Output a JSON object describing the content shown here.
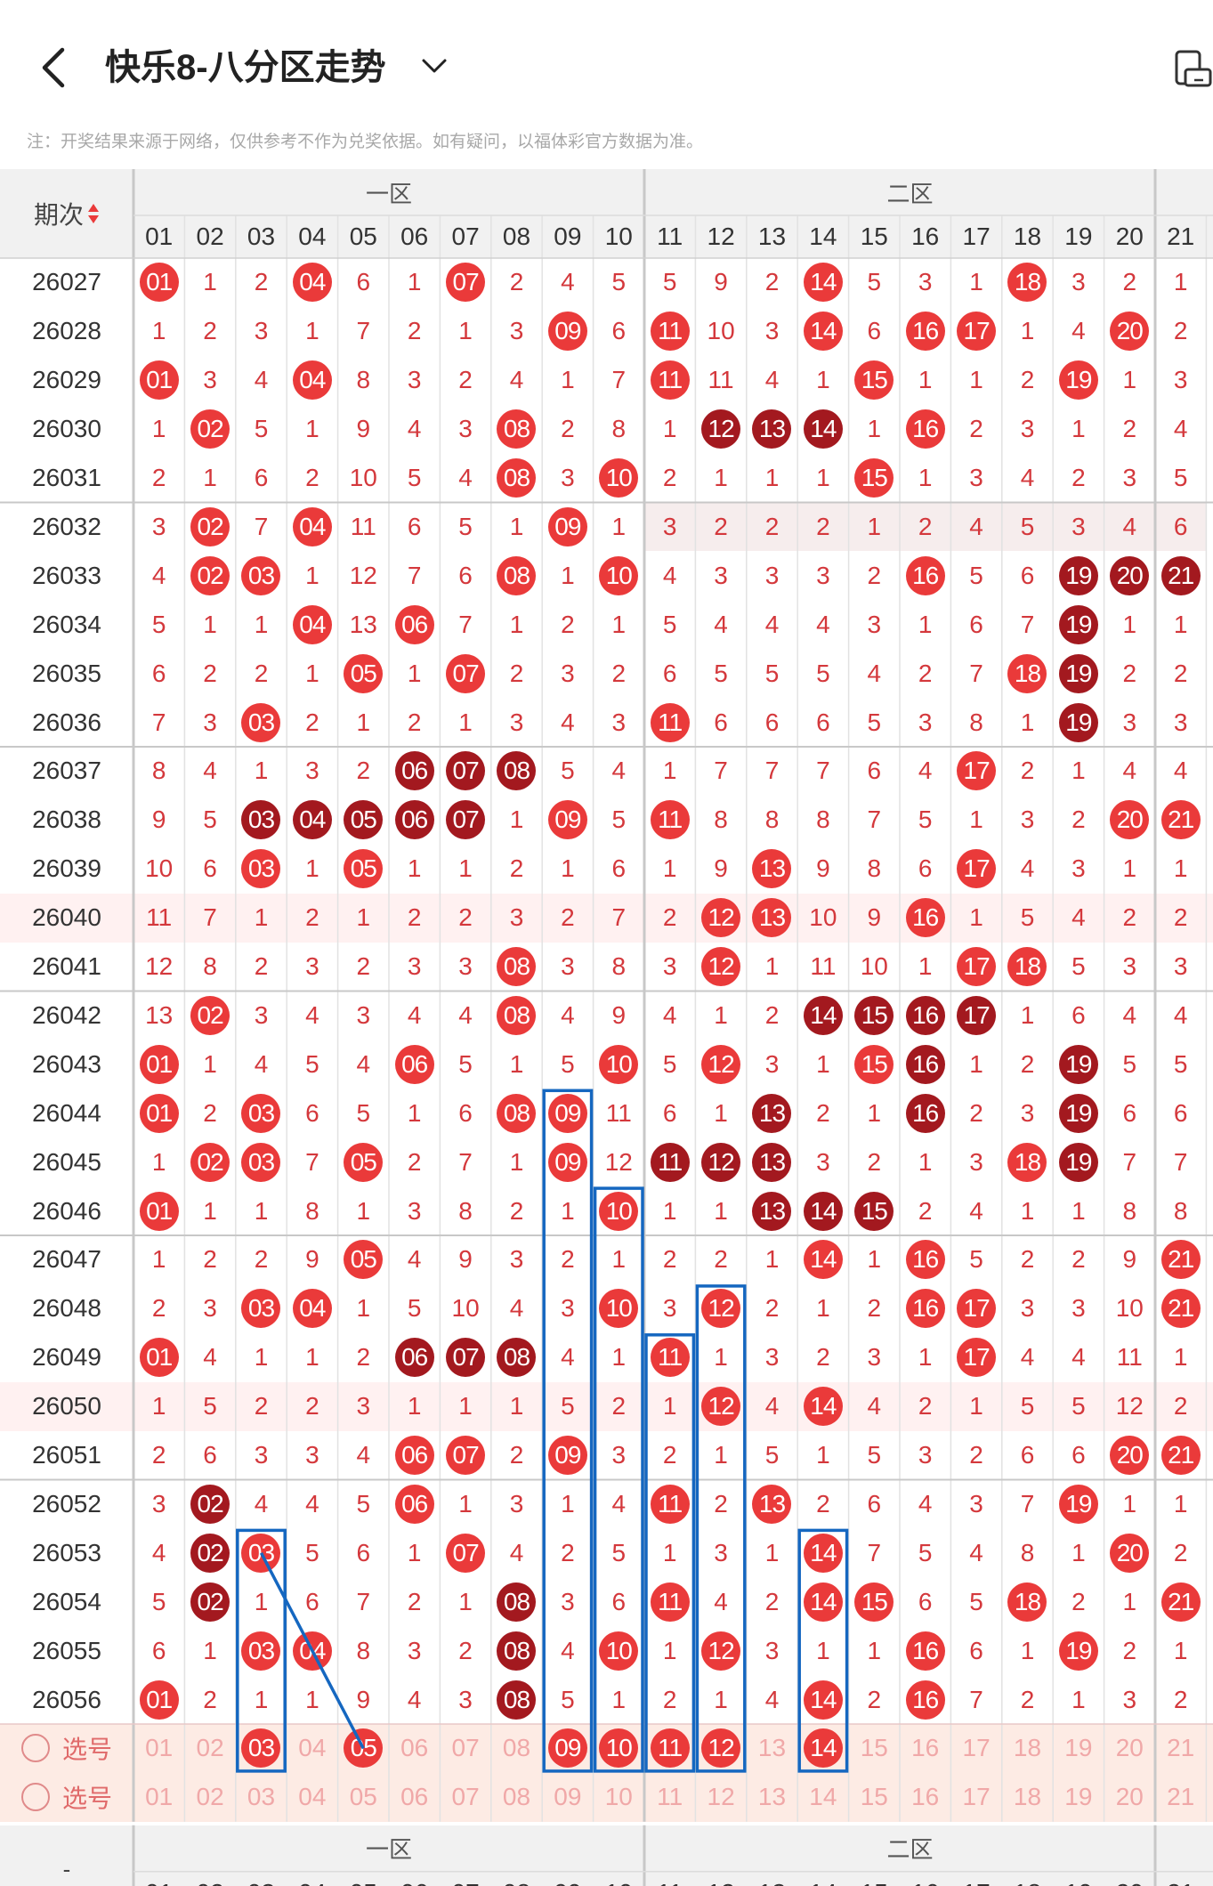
{
  "header": {
    "title": "快乐8-八分区走势",
    "back_icon": "chevron-left-icon",
    "dropdown_icon": "chevron-down-icon",
    "rotate_icon": "screen-rotate-icon"
  },
  "note": "注：开奖结果来源于网络，仅供参考不作为兑奖依据。如有疑问，以福体彩官方数据为准。",
  "table": {
    "period_label": "期次",
    "sort_icon": "sort-updown-icon",
    "zones": [
      "一区",
      "二区"
    ],
    "columns": [
      "01",
      "02",
      "03",
      "04",
      "05",
      "06",
      "07",
      "08",
      "09",
      "10",
      "11",
      "12",
      "13",
      "14",
      "15",
      "16",
      "17",
      "18",
      "19",
      "20",
      "21"
    ],
    "rows": [
      {
        "period": "26027",
        "cells": [
          "01",
          "1",
          "2",
          "04",
          "6",
          "1",
          "07",
          "2",
          "4",
          "5",
          "5",
          "9",
          "2",
          "14",
          "5",
          "3",
          "1",
          "18",
          "3",
          "2",
          "1"
        ]
      },
      {
        "period": "26028",
        "cells": [
          "1",
          "2",
          "3",
          "1",
          "7",
          "2",
          "1",
          "3",
          "09",
          "6",
          "11",
          "10",
          "3",
          "14",
          "6",
          "16",
          "17",
          "1",
          "4",
          "20",
          "2"
        ]
      },
      {
        "period": "26029",
        "cells": [
          "01",
          "3",
          "4",
          "04",
          "8",
          "3",
          "2",
          "4",
          "1",
          "7",
          "11",
          "11",
          "4",
          "1",
          "15",
          "1",
          "1",
          "2",
          "19",
          "1",
          "3"
        ]
      },
      {
        "period": "26030",
        "cells": [
          "1",
          "02",
          "5",
          "1",
          "9",
          "4",
          "3",
          "08",
          "2",
          "8",
          "1",
          "12",
          "13",
          "14",
          "1",
          "16",
          "2",
          "3",
          "1",
          "2",
          "4"
        ]
      },
      {
        "period": "26031",
        "cells": [
          "2",
          "1",
          "6",
          "2",
          "10",
          "5",
          "4",
          "08",
          "3",
          "10",
          "2",
          "1",
          "1",
          "1",
          "15",
          "1",
          "3",
          "4",
          "2",
          "3",
          "5"
        ]
      },
      {
        "period": "26032",
        "cells": [
          "3",
          "02",
          "7",
          "04",
          "11",
          "6",
          "5",
          "1",
          "09",
          "1",
          "3",
          "2",
          "2",
          "2",
          "1",
          "2",
          "4",
          "5",
          "3",
          "4",
          "6"
        ]
      },
      {
        "period": "26033",
        "cells": [
          "4",
          "02",
          "03",
          "1",
          "12",
          "7",
          "6",
          "08",
          "1",
          "10",
          "4",
          "3",
          "3",
          "3",
          "2",
          "16",
          "5",
          "6",
          "19",
          "20",
          "21"
        ]
      },
      {
        "period": "26034",
        "cells": [
          "5",
          "1",
          "1",
          "04",
          "13",
          "06",
          "7",
          "1",
          "2",
          "1",
          "5",
          "4",
          "4",
          "4",
          "3",
          "1",
          "6",
          "7",
          "19",
          "1",
          "1"
        ]
      },
      {
        "period": "26035",
        "cells": [
          "6",
          "2",
          "2",
          "1",
          "05",
          "1",
          "07",
          "2",
          "3",
          "2",
          "6",
          "5",
          "5",
          "5",
          "4",
          "2",
          "7",
          "18",
          "19",
          "2",
          "2"
        ]
      },
      {
        "period": "26036",
        "cells": [
          "7",
          "3",
          "03",
          "2",
          "1",
          "2",
          "1",
          "3",
          "4",
          "3",
          "11",
          "6",
          "6",
          "6",
          "5",
          "3",
          "8",
          "1",
          "19",
          "3",
          "3"
        ]
      },
      {
        "period": "26037",
        "cells": [
          "8",
          "4",
          "1",
          "3",
          "2",
          "06",
          "07",
          "08",
          "5",
          "4",
          "1",
          "7",
          "7",
          "7",
          "6",
          "4",
          "17",
          "2",
          "1",
          "4",
          "4"
        ]
      },
      {
        "period": "26038",
        "cells": [
          "9",
          "5",
          "03",
          "04",
          "05",
          "06",
          "07",
          "1",
          "09",
          "5",
          "11",
          "8",
          "8",
          "8",
          "7",
          "5",
          "1",
          "3",
          "2",
          "20",
          "21"
        ]
      },
      {
        "period": "26039",
        "cells": [
          "10",
          "6",
          "03",
          "1",
          "05",
          "1",
          "1",
          "2",
          "1",
          "6",
          "1",
          "9",
          "13",
          "9",
          "8",
          "6",
          "17",
          "4",
          "3",
          "1",
          "1"
        ]
      },
      {
        "period": "26040",
        "cells": [
          "11",
          "7",
          "1",
          "2",
          "1",
          "2",
          "2",
          "3",
          "2",
          "7",
          "2",
          "12",
          "13",
          "10",
          "9",
          "16",
          "1",
          "5",
          "4",
          "2",
          "2"
        ]
      },
      {
        "period": "26041",
        "cells": [
          "12",
          "8",
          "2",
          "3",
          "2",
          "3",
          "3",
          "08",
          "3",
          "8",
          "3",
          "12",
          "1",
          "11",
          "10",
          "1",
          "17",
          "18",
          "5",
          "3",
          "3"
        ]
      },
      {
        "period": "26042",
        "cells": [
          "13",
          "02",
          "3",
          "4",
          "3",
          "4",
          "4",
          "08",
          "4",
          "9",
          "4",
          "1",
          "2",
          "14",
          "15",
          "16",
          "17",
          "1",
          "6",
          "4",
          "4"
        ]
      },
      {
        "period": "26043",
        "cells": [
          "01",
          "1",
          "4",
          "5",
          "4",
          "06",
          "5",
          "1",
          "5",
          "10",
          "5",
          "12",
          "3",
          "1",
          "15",
          "16",
          "1",
          "2",
          "19",
          "5",
          "5"
        ]
      },
      {
        "period": "26044",
        "cells": [
          "01",
          "2",
          "03",
          "6",
          "5",
          "1",
          "6",
          "08",
          "09",
          "11",
          "6",
          "1",
          "13",
          "2",
          "1",
          "16",
          "2",
          "3",
          "19",
          "6",
          "6"
        ]
      },
      {
        "period": "26045",
        "cells": [
          "1",
          "02",
          "03",
          "7",
          "05",
          "2",
          "7",
          "1",
          "09",
          "12",
          "11",
          "12",
          "13",
          "3",
          "2",
          "1",
          "3",
          "18",
          "19",
          "7",
          "7"
        ]
      },
      {
        "period": "26046",
        "cells": [
          "01",
          "1",
          "1",
          "8",
          "1",
          "3",
          "8",
          "2",
          "1",
          "10",
          "1",
          "1",
          "13",
          "14",
          "15",
          "2",
          "4",
          "1",
          "1",
          "8",
          "8"
        ]
      },
      {
        "period": "26047",
        "cells": [
          "1",
          "2",
          "2",
          "9",
          "05",
          "4",
          "9",
          "3",
          "2",
          "1",
          "2",
          "2",
          "1",
          "14",
          "1",
          "16",
          "5",
          "2",
          "2",
          "9",
          "21"
        ]
      },
      {
        "period": "26048",
        "cells": [
          "2",
          "3",
          "03",
          "04",
          "1",
          "5",
          "10",
          "4",
          "3",
          "10",
          "3",
          "12",
          "2",
          "1",
          "2",
          "16",
          "17",
          "3",
          "3",
          "10",
          "21"
        ]
      },
      {
        "period": "26049",
        "cells": [
          "01",
          "4",
          "1",
          "1",
          "2",
          "06",
          "07",
          "08",
          "4",
          "1",
          "11",
          "1",
          "3",
          "2",
          "3",
          "1",
          "17",
          "4",
          "4",
          "11",
          "1"
        ]
      },
      {
        "period": "26050",
        "cells": [
          "1",
          "5",
          "2",
          "2",
          "3",
          "1",
          "1",
          "1",
          "5",
          "2",
          "1",
          "12",
          "4",
          "14",
          "4",
          "2",
          "1",
          "5",
          "5",
          "12",
          "2"
        ]
      },
      {
        "period": "26051",
        "cells": [
          "2",
          "6",
          "3",
          "3",
          "4",
          "06",
          "07",
          "2",
          "09",
          "3",
          "2",
          "1",
          "5",
          "1",
          "5",
          "3",
          "2",
          "6",
          "6",
          "20",
          "21"
        ]
      },
      {
        "period": "26052",
        "cells": [
          "3",
          "02",
          "4",
          "4",
          "5",
          "06",
          "1",
          "3",
          "1",
          "4",
          "11",
          "2",
          "13",
          "2",
          "6",
          "4",
          "3",
          "7",
          "19",
          "1",
          "1"
        ]
      },
      {
        "period": "26053",
        "cells": [
          "4",
          "02",
          "03",
          "5",
          "6",
          "1",
          "07",
          "4",
          "2",
          "5",
          "1",
          "3",
          "1",
          "14",
          "7",
          "5",
          "4",
          "8",
          "1",
          "20",
          "2"
        ]
      },
      {
        "period": "26054",
        "cells": [
          "5",
          "02",
          "1",
          "6",
          "7",
          "2",
          "1",
          "08",
          "3",
          "6",
          "11",
          "4",
          "2",
          "14",
          "15",
          "6",
          "5",
          "18",
          "2",
          "1",
          "21"
        ]
      },
      {
        "period": "26055",
        "cells": [
          "6",
          "1",
          "03",
          "04",
          "8",
          "3",
          "2",
          "08",
          "4",
          "10",
          "1",
          "12",
          "3",
          "1",
          "1",
          "16",
          "6",
          "1",
          "19",
          "2",
          "1"
        ]
      },
      {
        "period": "26056",
        "cells": [
          "01",
          "2",
          "1",
          "1",
          "9",
          "4",
          "3",
          "08",
          "5",
          "1",
          "2",
          "1",
          "4",
          "14",
          "2",
          "16",
          "7",
          "2",
          "1",
          "3",
          "2"
        ]
      }
    ],
    "select_rows": [
      {
        "label": "选号",
        "selected": [
          "03",
          "05",
          "09",
          "10",
          "11",
          "12",
          "14"
        ]
      },
      {
        "label": "选号",
        "selected": []
      }
    ],
    "footer_period": "-"
  },
  "colors": {
    "red": "#ea3a3a",
    "dark_red": "#a3191f",
    "text_red": "#d4383c",
    "box_blue": "#1567c0",
    "header_bg": "#f1f1f1",
    "select_bg": "#fdebe4",
    "stripe_pink": "#fff1f1",
    "stripe_gray": "#f6eded"
  }
}
